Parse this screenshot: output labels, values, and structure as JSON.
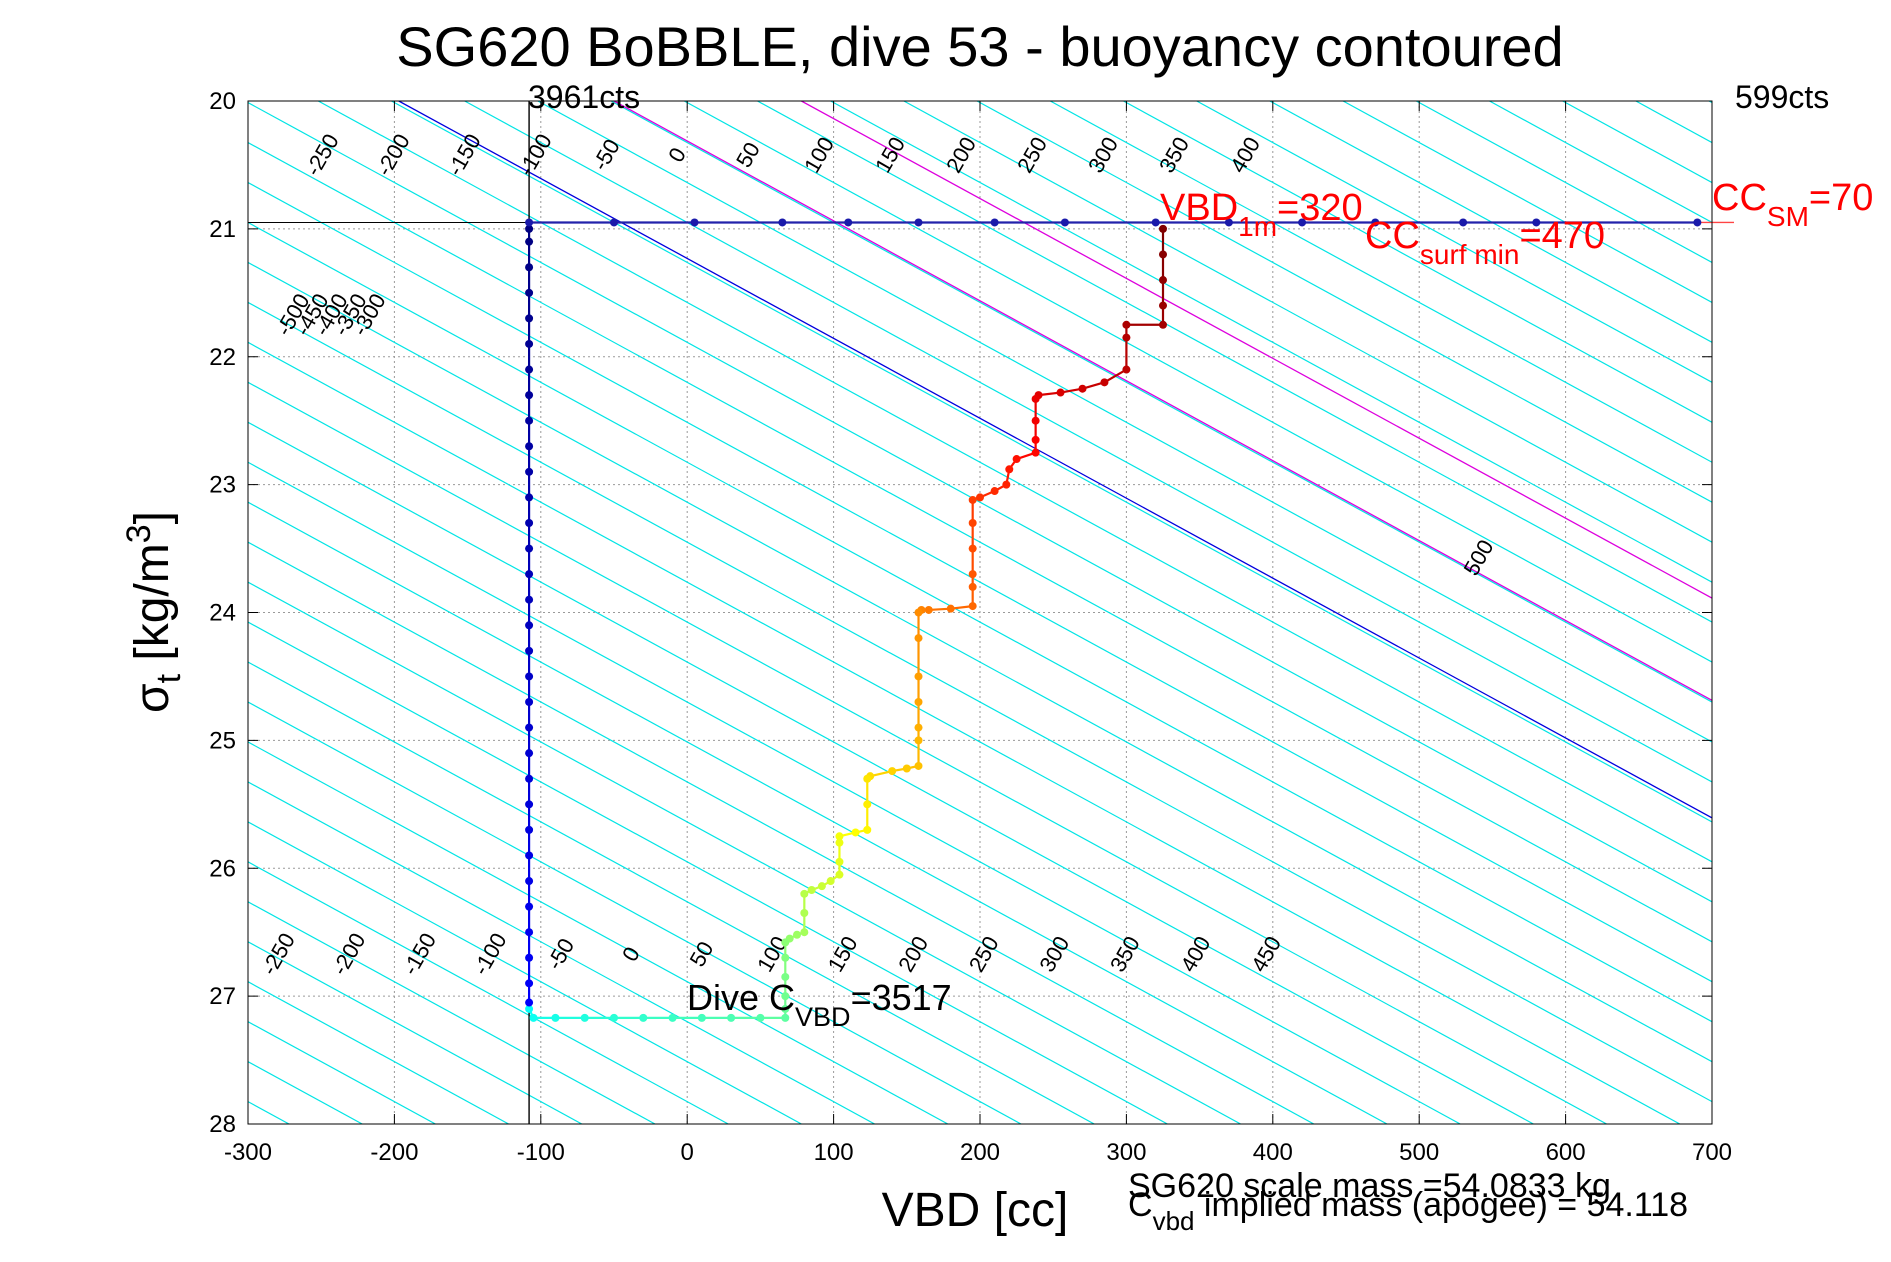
{
  "chart_data": {
    "type": "scatter",
    "title": "SG620 BoBBLE, dive 53 - buoyancy contoured",
    "xlabel": "VBD [cc]",
    "ylabel": {
      "base": "σ",
      "sub": "t",
      "unit": " [kg/m",
      "sup": "3",
      "close": "]"
    },
    "xlim": [
      -300,
      700
    ],
    "ylim": [
      20,
      28
    ],
    "y_reversed": true,
    "x_ticks": [
      -300,
      -200,
      -100,
      0,
      100,
      200,
      300,
      400,
      500,
      600,
      700
    ],
    "x_tick_labels": [
      "-300",
      "-200",
      "-100",
      "0",
      "100",
      "200",
      "300",
      "400",
      "500",
      "600",
      "700"
    ],
    "y_ticks": [
      20,
      21,
      22,
      23,
      24,
      25,
      26,
      27,
      28
    ],
    "y_tick_labels": [
      "20",
      "21",
      "22",
      "23",
      "24",
      "25",
      "26",
      "27",
      "28"
    ],
    "grid": true,
    "contour_slope": 1600,
    "contour_labels_upper": [
      "-250",
      "-200",
      "-150",
      "-100",
      "-50",
      "0",
      "50",
      "100",
      "150",
      "200",
      "250",
      "300",
      "350",
      "400"
    ],
    "contour_labels_lower": [
      "-250",
      "-200",
      "-150",
      "-100",
      "-50",
      "0",
      "50",
      "100",
      "150",
      "200",
      "250",
      "300",
      "350",
      "400",
      "450"
    ],
    "contour_labels_left": [
      "-500",
      "-450",
      "-400",
      "-350",
      "-300"
    ],
    "contour_label_right": "500",
    "vbd_min_label": "3961cts",
    "vbd_max_label": "599cts",
    "vbd_min_x": -108,
    "surface_sigma": 20.95,
    "annotations": {
      "vbd_1m": {
        "base": "VBD",
        "sub": "1m",
        "tail": "=320",
        "x": 320
      },
      "cc_surf_min": {
        "base": "CC",
        "sub": "surf min",
        "tail": "=470",
        "x": 470
      },
      "cc_sm": {
        "base": "CC",
        "sub": "SM",
        "tail": "=70"
      },
      "dive_c_vbd": {
        "base": "Dive C",
        "sub": "VBD",
        "tail": "=3517"
      }
    },
    "footer_line1": "SG620 scale mass =54.0833 kg",
    "footer_line2": {
      "base": "C",
      "sub": "vbd",
      "tail": " implied mass (apogee) = 54.118"
    },
    "series": [
      {
        "type": "descent",
        "points": [
          [
            325,
            21.0
          ],
          [
            325,
            21.2
          ],
          [
            325,
            21.4
          ],
          [
            325,
            21.6
          ],
          [
            325,
            21.75
          ],
          [
            300,
            21.75
          ],
          [
            300,
            21.85
          ],
          [
            300,
            22.1
          ],
          [
            285,
            22.2
          ],
          [
            270,
            22.25
          ],
          [
            255,
            22.28
          ],
          [
            240,
            22.3
          ],
          [
            238,
            22.33
          ],
          [
            238,
            22.5
          ],
          [
            238,
            22.65
          ],
          [
            238,
            22.75
          ],
          [
            225,
            22.8
          ],
          [
            220,
            22.88
          ],
          [
            218,
            23.0
          ],
          [
            210,
            23.05
          ],
          [
            200,
            23.1
          ],
          [
            195,
            23.12
          ],
          [
            195,
            23.3
          ],
          [
            195,
            23.5
          ],
          [
            195,
            23.7
          ],
          [
            195,
            23.8
          ],
          [
            195,
            23.95
          ],
          [
            180,
            23.97
          ],
          [
            165,
            23.98
          ],
          [
            160,
            23.98
          ],
          [
            158,
            24.0
          ],
          [
            158,
            24.2
          ],
          [
            158,
            24.5
          ],
          [
            158,
            24.7
          ],
          [
            158,
            24.9
          ],
          [
            158,
            25.0
          ],
          [
            158,
            25.2
          ],
          [
            150,
            25.22
          ],
          [
            140,
            25.24
          ],
          [
            125,
            25.28
          ],
          [
            123,
            25.3
          ],
          [
            123,
            25.5
          ],
          [
            123,
            25.7
          ],
          [
            115,
            25.72
          ],
          [
            104,
            25.75
          ],
          [
            104,
            25.8
          ],
          [
            104,
            25.95
          ],
          [
            104,
            26.05
          ],
          [
            98,
            26.1
          ],
          [
            92,
            26.14
          ],
          [
            85,
            26.17
          ],
          [
            80,
            26.2
          ],
          [
            80,
            26.35
          ],
          [
            80,
            26.5
          ],
          [
            75,
            26.52
          ],
          [
            70,
            26.55
          ],
          [
            67,
            26.58
          ],
          [
            67,
            26.7
          ],
          [
            67,
            26.85
          ],
          [
            67,
            27.0
          ],
          [
            67,
            27.1
          ],
          [
            67,
            27.17
          ],
          [
            50,
            27.17
          ],
          [
            30,
            27.17
          ],
          [
            10,
            27.17
          ],
          [
            -10,
            27.17
          ],
          [
            -30,
            27.17
          ],
          [
            -50,
            27.17
          ],
          [
            -70,
            27.17
          ],
          [
            -90,
            27.17
          ],
          [
            -105,
            27.17
          ],
          [
            -108,
            27.1
          ]
        ]
      },
      {
        "type": "ascent",
        "points": [
          [
            -108,
            27.05
          ],
          [
            -108,
            26.9
          ],
          [
            -108,
            26.7
          ],
          [
            -108,
            26.5
          ],
          [
            -108,
            26.3
          ],
          [
            -108,
            26.1
          ],
          [
            -108,
            25.9
          ],
          [
            -108,
            25.7
          ],
          [
            -108,
            25.5
          ],
          [
            -108,
            25.3
          ],
          [
            -108,
            25.1
          ],
          [
            -108,
            24.9
          ],
          [
            -108,
            24.7
          ],
          [
            -108,
            24.5
          ],
          [
            -108,
            24.3
          ],
          [
            -108,
            24.1
          ],
          [
            -108,
            23.9
          ],
          [
            -108,
            23.7
          ],
          [
            -108,
            23.5
          ],
          [
            -108,
            23.3
          ],
          [
            -108,
            23.1
          ],
          [
            -108,
            22.9
          ],
          [
            -108,
            22.7
          ],
          [
            -108,
            22.5
          ],
          [
            -108,
            22.3
          ],
          [
            -108,
            22.1
          ],
          [
            -108,
            21.9
          ],
          [
            -108,
            21.7
          ],
          [
            -108,
            21.5
          ],
          [
            -108,
            21.3
          ],
          [
            -108,
            21.1
          ],
          [
            -108,
            21.0
          ]
        ]
      },
      {
        "type": "surface",
        "points": [
          [
            -108,
            20.95
          ],
          [
            -50,
            20.95
          ],
          [
            5,
            20.95
          ],
          [
            65,
            20.95
          ],
          [
            110,
            20.95
          ],
          [
            158,
            20.95
          ],
          [
            210,
            20.95
          ],
          [
            258,
            20.95
          ],
          [
            320,
            20.95
          ],
          [
            370,
            20.95
          ],
          [
            420,
            20.95
          ],
          [
            470,
            20.95
          ],
          [
            530,
            20.95
          ],
          [
            580,
            20.95
          ],
          [
            690,
            20.95
          ]
        ]
      }
    ]
  }
}
